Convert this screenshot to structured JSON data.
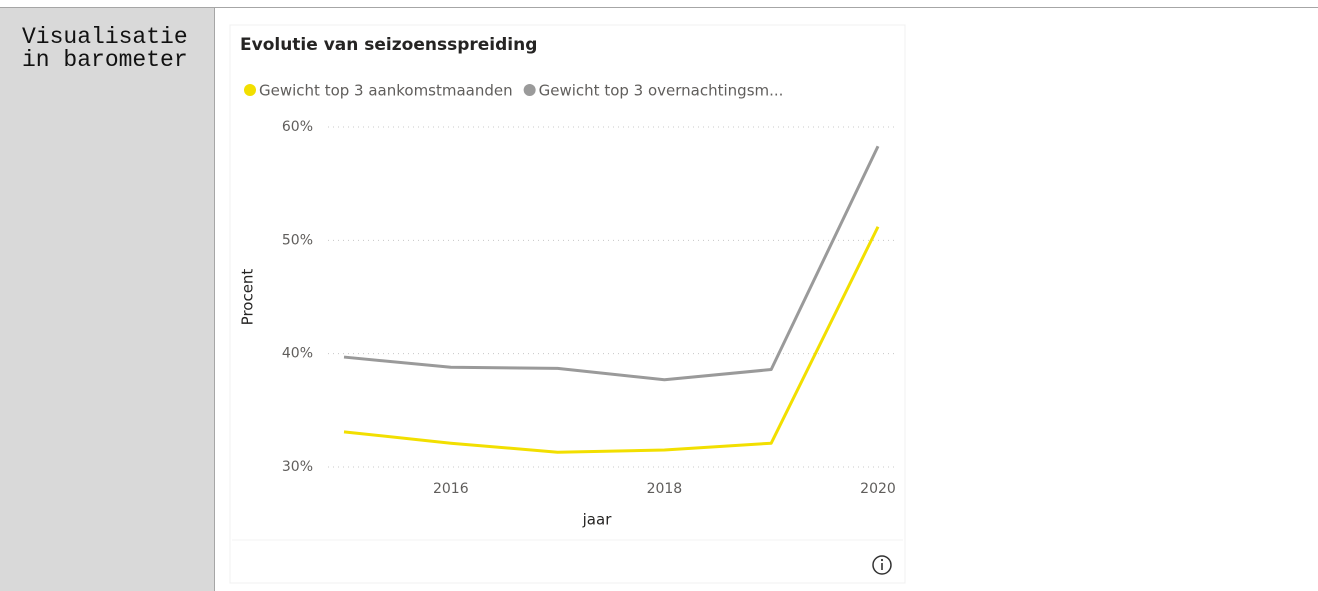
{
  "cell_label": "Visualisatie in barometer",
  "chart_data": {
    "type": "line",
    "title": "Evolutie van seizoensspreiding",
    "x": [
      2015,
      2016,
      2017,
      2018,
      2019,
      2020
    ],
    "series": [
      {
        "name": "Gewicht top 3 aankomstmaanden",
        "color": "#f2df00",
        "values": [
          33.1,
          32.1,
          31.3,
          31.5,
          32.1,
          51.2
        ]
      },
      {
        "name": "Gewicht top 3 overnachtingsm...",
        "color": "#9a9a9a",
        "values": [
          39.7,
          38.8,
          38.7,
          37.7,
          38.6,
          58.3
        ]
      }
    ],
    "xlim": [
      2015,
      2020
    ],
    "xticks": [
      2016,
      2018,
      2020
    ],
    "ylim": [
      30,
      60
    ],
    "yticks": [
      {
        "value": 30,
        "label": "30%"
      },
      {
        "value": 40,
        "label": "40%"
      },
      {
        "value": 50,
        "label": "50%"
      },
      {
        "value": 60,
        "label": "60%"
      }
    ],
    "xlabel": "jaar",
    "ylabel": "Procent",
    "grid": true,
    "legend": "top"
  }
}
